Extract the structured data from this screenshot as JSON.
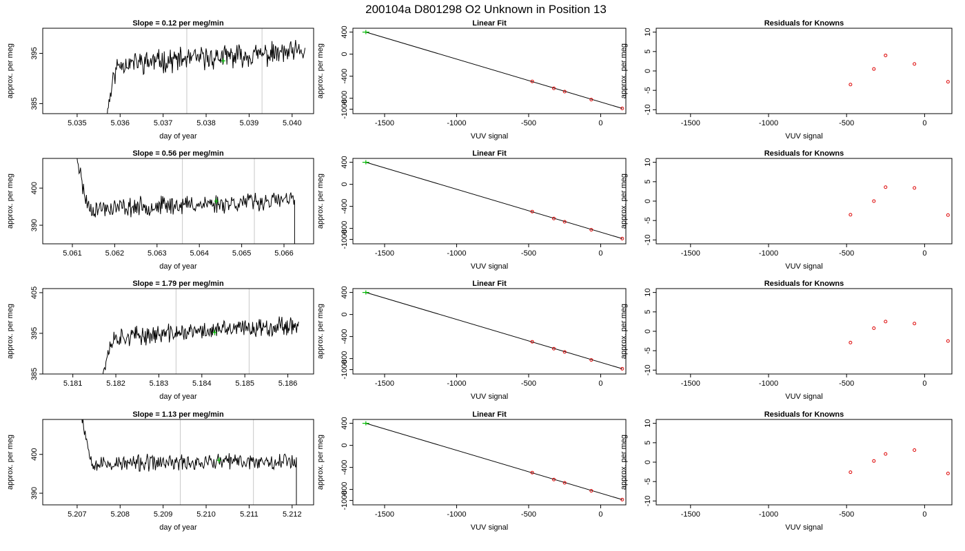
{
  "figure": {
    "title": "200104a     D801298   O2 Unknown in Position  13",
    "rows": [
      {
        "left": {
          "title": "Slope =  0.12  per meg/min",
          "xlabel": "day of year",
          "ylabel": "approx. per meg",
          "xlim": [
            5.0342,
            5.0405
          ],
          "ylim": [
            383,
            400
          ],
          "xticks": [
            "5.035",
            "5.036",
            "5.037",
            "5.038",
            "5.039",
            "5.040"
          ],
          "yticks": [
            "385",
            "395"
          ],
          "vlines": [
            5.03755,
            5.0393
          ],
          "series": {
            "start": 5.0356,
            "start_y": 376,
            "end": 5.0403,
            "plateau": 393.0,
            "trend": 2.5,
            "noise": 1.8,
            "rise": "up",
            "seed": 11
          },
          "marker": {
            "x": 5.0384,
            "y": 393.5
          }
        },
        "fit": {
          "title": "Linear Fit",
          "xlabel": "VUV signal",
          "ylabel": "approx. per meg",
          "xlim": [
            -1720,
            175
          ],
          "ylim": [
            -1080,
            470
          ],
          "xticks": [
            "-1500",
            "-1000",
            "-500",
            "0"
          ],
          "yticks": [
            "-1000",
            "-800",
            "-400",
            "0",
            "400"
          ],
          "line": [
            [
              -1630,
              400
            ],
            [
              150,
              -985
            ]
          ],
          "knowns": [
            [
              -475,
              -495
            ],
            [
              -325,
              -620
            ],
            [
              -250,
              -680
            ],
            [
              -65,
              -825
            ],
            [
              150,
              -985
            ]
          ],
          "unknown": [
            -1630,
            400
          ]
        },
        "resid": {
          "title": "Residuals for Knowns",
          "xlabel": "VUV signal",
          "ylabel": "approx. per meg",
          "xlim": [
            -1720,
            175
          ],
          "ylim": [
            -11,
            11
          ],
          "xticks": [
            "-1500",
            "-1000",
            "-500",
            "0"
          ],
          "yticks": [
            "-10",
            "-5",
            "0",
            "5",
            "10"
          ],
          "points": [
            [
              -475,
              -3.5
            ],
            [
              -325,
              0.5
            ],
            [
              -250,
              4.0
            ],
            [
              -65,
              1.8
            ],
            [
              150,
              -2.8
            ]
          ]
        }
      },
      {
        "left": {
          "title": "Slope =  0.56  per meg/min",
          "xlabel": "day of year",
          "ylabel": "approx. per meg",
          "xlim": [
            5.0603,
            5.0667
          ],
          "ylim": [
            385,
            408
          ],
          "xticks": [
            "5.061",
            "5.062",
            "5.063",
            "5.064",
            "5.065",
            "5.066"
          ],
          "yticks": [
            "390",
            "400"
          ],
          "vlines": [
            5.0636,
            5.0653
          ],
          "series": {
            "start": 5.061,
            "start_y": 420,
            "end": 5.06625,
            "plateau": 394.5,
            "trend": 2.5,
            "noise": 2.0,
            "rise": "down",
            "seed": 23
          },
          "marker": {
            "x": 5.0644,
            "y": 396.5
          }
        },
        "fit": {
          "title": "Linear Fit",
          "xlabel": "VUV signal",
          "ylabel": "approx. per meg",
          "xlim": [
            -1720,
            175
          ],
          "ylim": [
            -1080,
            470
          ],
          "xticks": [
            "-1500",
            "-1000",
            "-500",
            "0"
          ],
          "yticks": [
            "-1000",
            "-800",
            "-400",
            "0",
            "400"
          ],
          "line": [
            [
              -1630,
              400
            ],
            [
              150,
              -985
            ]
          ],
          "knowns": [
            [
              -475,
              -495
            ],
            [
              -325,
              -620
            ],
            [
              -250,
              -680
            ],
            [
              -65,
              -825
            ],
            [
              150,
              -985
            ]
          ],
          "unknown": [
            -1630,
            400
          ]
        },
        "resid": {
          "title": "Residuals for Knowns",
          "xlabel": "VUV signal",
          "ylabel": "approx. per meg",
          "xlim": [
            -1720,
            175
          ],
          "ylim": [
            -11,
            11
          ],
          "xticks": [
            "-1500",
            "-1000",
            "-500",
            "0"
          ],
          "yticks": [
            "-10",
            "-5",
            "0",
            "5",
            "10"
          ],
          "points": [
            [
              -475,
              -3.5
            ],
            [
              -325,
              0.0
            ],
            [
              -250,
              3.6
            ],
            [
              -65,
              3.4
            ],
            [
              150,
              -3.6
            ]
          ]
        }
      },
      {
        "left": {
          "title": "Slope =  1.79  per meg/min",
          "xlabel": "day of year",
          "ylabel": "approx. per meg",
          "xlim": [
            5.1803,
            5.1866
          ],
          "ylim": [
            385,
            406
          ],
          "xticks": [
            "5.181",
            "5.182",
            "5.183",
            "5.184",
            "5.185",
            "5.186"
          ],
          "yticks": [
            "385",
            "395",
            "405"
          ],
          "vlines": [
            5.1834,
            5.1851
          ],
          "series": {
            "start": 5.1816,
            "start_y": 378,
            "end": 5.18625,
            "plateau": 394.0,
            "trend": 3.5,
            "noise": 1.8,
            "rise": "up",
            "seed": 37
          },
          "marker": {
            "x": 5.1843,
            "y": 395.2
          }
        },
        "fit": {
          "title": "Linear Fit",
          "xlabel": "VUV signal",
          "ylabel": "approx. per meg",
          "xlim": [
            -1720,
            175
          ],
          "ylim": [
            -1080,
            470
          ],
          "xticks": [
            "-1500",
            "-1000",
            "-500",
            "0"
          ],
          "yticks": [
            "-1000",
            "-800",
            "-400",
            "0",
            "400"
          ],
          "line": [
            [
              -1630,
              400
            ],
            [
              150,
              -985
            ]
          ],
          "knowns": [
            [
              -475,
              -495
            ],
            [
              -325,
              -620
            ],
            [
              -250,
              -680
            ],
            [
              -65,
              -825
            ],
            [
              150,
              -985
            ]
          ],
          "unknown": [
            -1630,
            400
          ]
        },
        "resid": {
          "title": "Residuals for Knowns",
          "xlabel": "VUV signal",
          "ylabel": "approx. per meg",
          "xlim": [
            -1720,
            175
          ],
          "ylim": [
            -11,
            11
          ],
          "xticks": [
            "-1500",
            "-1000",
            "-500",
            "0"
          ],
          "yticks": [
            "-10",
            "-5",
            "0",
            "5",
            "10"
          ],
          "points": [
            [
              -475,
              -2.9
            ],
            [
              -325,
              0.8
            ],
            [
              -250,
              2.5
            ],
            [
              -65,
              2.0
            ],
            [
              150,
              -2.5
            ]
          ]
        }
      },
      {
        "left": {
          "title": "Slope =  1.13  per meg/min",
          "xlabel": "day of year",
          "ylabel": "approx. per meg",
          "xlim": [
            5.2062,
            5.2125
          ],
          "ylim": [
            387,
            409
          ],
          "xticks": [
            "5.207",
            "5.208",
            "5.209",
            "5.210",
            "5.211",
            "5.212"
          ],
          "yticks": [
            "390",
            "400"
          ],
          "vlines": [
            5.2094,
            5.2111
          ],
          "series": {
            "start": 5.207,
            "start_y": 420,
            "end": 5.2121,
            "plateau": 397.5,
            "trend": 1.0,
            "noise": 1.7,
            "rise": "down",
            "seed": 53
          },
          "marker": {
            "x": 5.2103,
            "y": 398.5
          }
        },
        "fit": {
          "title": "Linear Fit",
          "xlabel": "VUV signal",
          "ylabel": "approx. per meg",
          "xlim": [
            -1720,
            175
          ],
          "ylim": [
            -1080,
            470
          ],
          "xticks": [
            "-1500",
            "-1000",
            "-500",
            "0"
          ],
          "yticks": [
            "-1000",
            "-800",
            "-400",
            "0",
            "400"
          ],
          "line": [
            [
              -1630,
              400
            ],
            [
              150,
              -985
            ]
          ],
          "knowns": [
            [
              -475,
              -495
            ],
            [
              -325,
              -620
            ],
            [
              -250,
              -680
            ],
            [
              -65,
              -825
            ],
            [
              150,
              -985
            ]
          ],
          "unknown": [
            -1630,
            400
          ]
        },
        "resid": {
          "title": "Residuals for Knowns",
          "xlabel": "VUV signal",
          "ylabel": "approx. per meg",
          "xlim": [
            -1720,
            175
          ],
          "ylim": [
            -11,
            11
          ],
          "xticks": [
            "-1500",
            "-1000",
            "-500",
            "0"
          ],
          "yticks": [
            "-10",
            "-5",
            "0",
            "5",
            "10"
          ],
          "points": [
            [
              -475,
              -2.6
            ],
            [
              -325,
              0.3
            ],
            [
              -250,
              2.1
            ],
            [
              -65,
              3.1
            ],
            [
              150,
              -2.9
            ]
          ]
        }
      }
    ]
  },
  "colors": {
    "trace": "#000000",
    "vline": "#c8c8c8",
    "known_point": "#dd0000",
    "unknown_point": "#00bb00",
    "fit_line": "#000000"
  },
  "chart_data": [
    {
      "type": "line",
      "title": "Slope =  0.12  per meg/min",
      "xlabel": "day of year",
      "ylabel": "approx. per meg",
      "xlim": [
        5.0342,
        5.0405
      ],
      "ylim": [
        383,
        400
      ],
      "grid": false
    },
    {
      "type": "scatter",
      "title": "Linear Fit",
      "xlabel": "VUV signal",
      "ylabel": "approx. per meg",
      "x": [
        -475,
        -325,
        -250,
        -65,
        150
      ],
      "y": [
        -495,
        -620,
        -680,
        -825,
        -985
      ],
      "unknown": {
        "x": -1630,
        "y": 400
      }
    },
    {
      "type": "scatter",
      "title": "Residuals for Knowns",
      "xlabel": "VUV signal",
      "ylabel": "approx. per meg",
      "x": [
        -475,
        -325,
        -250,
        -65,
        150
      ],
      "y": [
        -3.5,
        0.5,
        4.0,
        1.8,
        -2.8
      ]
    },
    {
      "type": "line",
      "title": "Slope =  0.56  per meg/min",
      "xlabel": "day of year",
      "ylabel": "approx. per meg",
      "xlim": [
        5.0603,
        5.0667
      ],
      "ylim": [
        385,
        408
      ],
      "grid": false
    },
    {
      "type": "scatter",
      "title": "Linear Fit",
      "xlabel": "VUV signal",
      "ylabel": "approx. per meg",
      "x": [
        -475,
        -325,
        -250,
        -65,
        150
      ],
      "y": [
        -495,
        -620,
        -680,
        -825,
        -985
      ],
      "unknown": {
        "x": -1630,
        "y": 400
      }
    },
    {
      "type": "scatter",
      "title": "Residuals for Knowns",
      "xlabel": "VUV signal",
      "ylabel": "approx. per meg",
      "x": [
        -475,
        -325,
        -250,
        -65,
        150
      ],
      "y": [
        -3.5,
        0.0,
        3.6,
        3.4,
        -3.6
      ]
    },
    {
      "type": "line",
      "title": "Slope =  1.79  per meg/min",
      "xlabel": "day of year",
      "ylabel": "approx. per meg",
      "xlim": [
        5.1803,
        5.1866
      ],
      "ylim": [
        385,
        406
      ],
      "grid": false
    },
    {
      "type": "scatter",
      "title": "Linear Fit",
      "xlabel": "VUV signal",
      "ylabel": "approx. per meg",
      "x": [
        -475,
        -325,
        -250,
        -65,
        150
      ],
      "y": [
        -495,
        -620,
        -680,
        -825,
        -985
      ],
      "unknown": {
        "x": -1630,
        "y": 400
      }
    },
    {
      "type": "scatter",
      "title": "Residuals for Knowns",
      "xlabel": "VUV signal",
      "ylabel": "approx. per meg",
      "x": [
        -475,
        -325,
        -250,
        -65,
        150
      ],
      "y": [
        -2.9,
        0.8,
        2.5,
        2.0,
        -2.5
      ]
    },
    {
      "type": "line",
      "title": "Slope =  1.13  per meg/min",
      "xlabel": "day of year",
      "ylabel": "approx. per meg",
      "xlim": [
        5.2062,
        5.2125
      ],
      "ylim": [
        387,
        409
      ],
      "grid": false
    },
    {
      "type": "scatter",
      "title": "Linear Fit",
      "xlabel": "VUV signal",
      "ylabel": "approx. per meg",
      "x": [
        -475,
        -325,
        -250,
        -65,
        150
      ],
      "y": [
        -495,
        -620,
        -680,
        -825,
        -985
      ],
      "unknown": {
        "x": -1630,
        "y": 400
      }
    },
    {
      "type": "scatter",
      "title": "Residuals for Knowns",
      "xlabel": "VUV signal",
      "ylabel": "approx. per meg",
      "x": [
        -475,
        -325,
        -250,
        -65,
        150
      ],
      "y": [
        -2.6,
        0.3,
        2.1,
        3.1,
        -2.9
      ]
    }
  ]
}
